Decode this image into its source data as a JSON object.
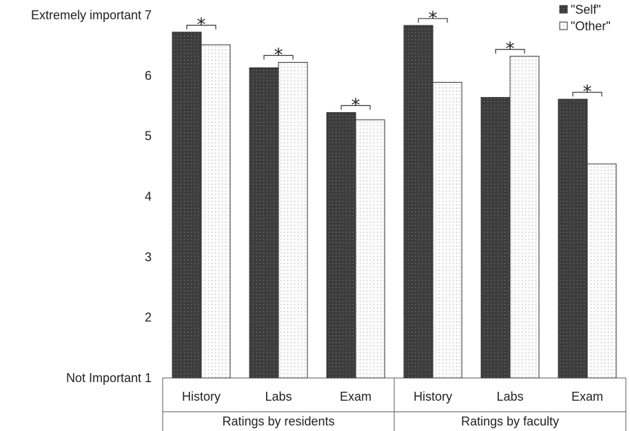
{
  "chart_data": {
    "type": "bar",
    "ylim": [
      1,
      7
    ],
    "yticks": [
      1,
      2,
      3,
      4,
      5,
      6,
      7
    ],
    "ytick_labels": [
      "Not Important 1",
      "2",
      "3",
      "4",
      "5",
      "6",
      "Extremely important 7"
    ],
    "series": [
      {
        "name": "\"Self\"",
        "color": "#3a3a3a"
      },
      {
        "name": "\"Other\"",
        "color": "#f2f2f2"
      }
    ],
    "groups": [
      {
        "label": "Ratings by residents",
        "categories": [
          {
            "label": "History",
            "values": [
              6.72,
              6.51
            ],
            "significance": "*"
          },
          {
            "label": "Labs",
            "values": [
              6.13,
              6.22
            ],
            "significance": "*"
          },
          {
            "label": "Exam",
            "values": [
              5.39,
              5.27
            ],
            "significance": "*"
          }
        ]
      },
      {
        "label": "Ratings by faculty",
        "categories": [
          {
            "label": "History",
            "values": [
              6.83,
              5.89
            ],
            "significance": "*"
          },
          {
            "label": "Labs",
            "values": [
              5.64,
              6.32
            ],
            "significance": "*"
          },
          {
            "label": "Exam",
            "values": [
              5.61,
              4.54
            ],
            "significance": "*"
          }
        ]
      }
    ],
    "legend_position": "top-right",
    "grid": false
  }
}
